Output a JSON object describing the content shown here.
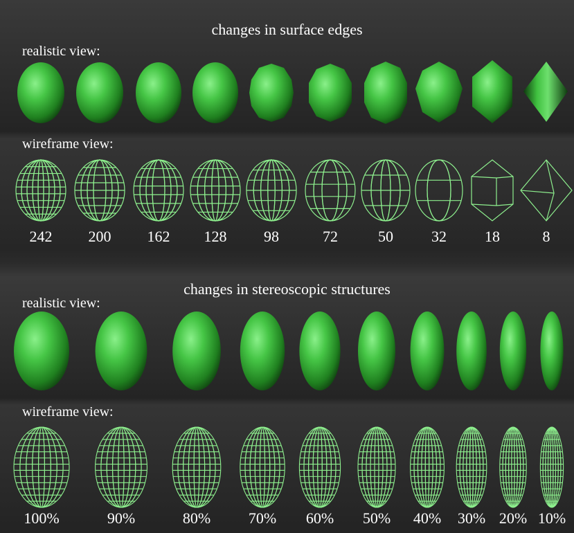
{
  "top": {
    "title": "changes in surface edges",
    "realistic_label": "realistic view:",
    "wireframe_label": "wireframe view:",
    "edge_counts": [
      "242",
      "200",
      "162",
      "128",
      "98",
      "72",
      "50",
      "32",
      "18",
      "8"
    ]
  },
  "bottom": {
    "title": "changes in stereoscopic structures",
    "realistic_label": "realistic view:",
    "wireframe_label": "wireframe view:",
    "percentages": [
      "100%",
      "90%",
      "80%",
      "70%",
      "60%",
      "50%",
      "40%",
      "30%",
      "20%",
      "10%"
    ]
  },
  "colors": {
    "background": "#2b2b2b",
    "shape_green": "#3fbf3f",
    "wire_green": "#8ef08e",
    "text": "#ffffff"
  }
}
